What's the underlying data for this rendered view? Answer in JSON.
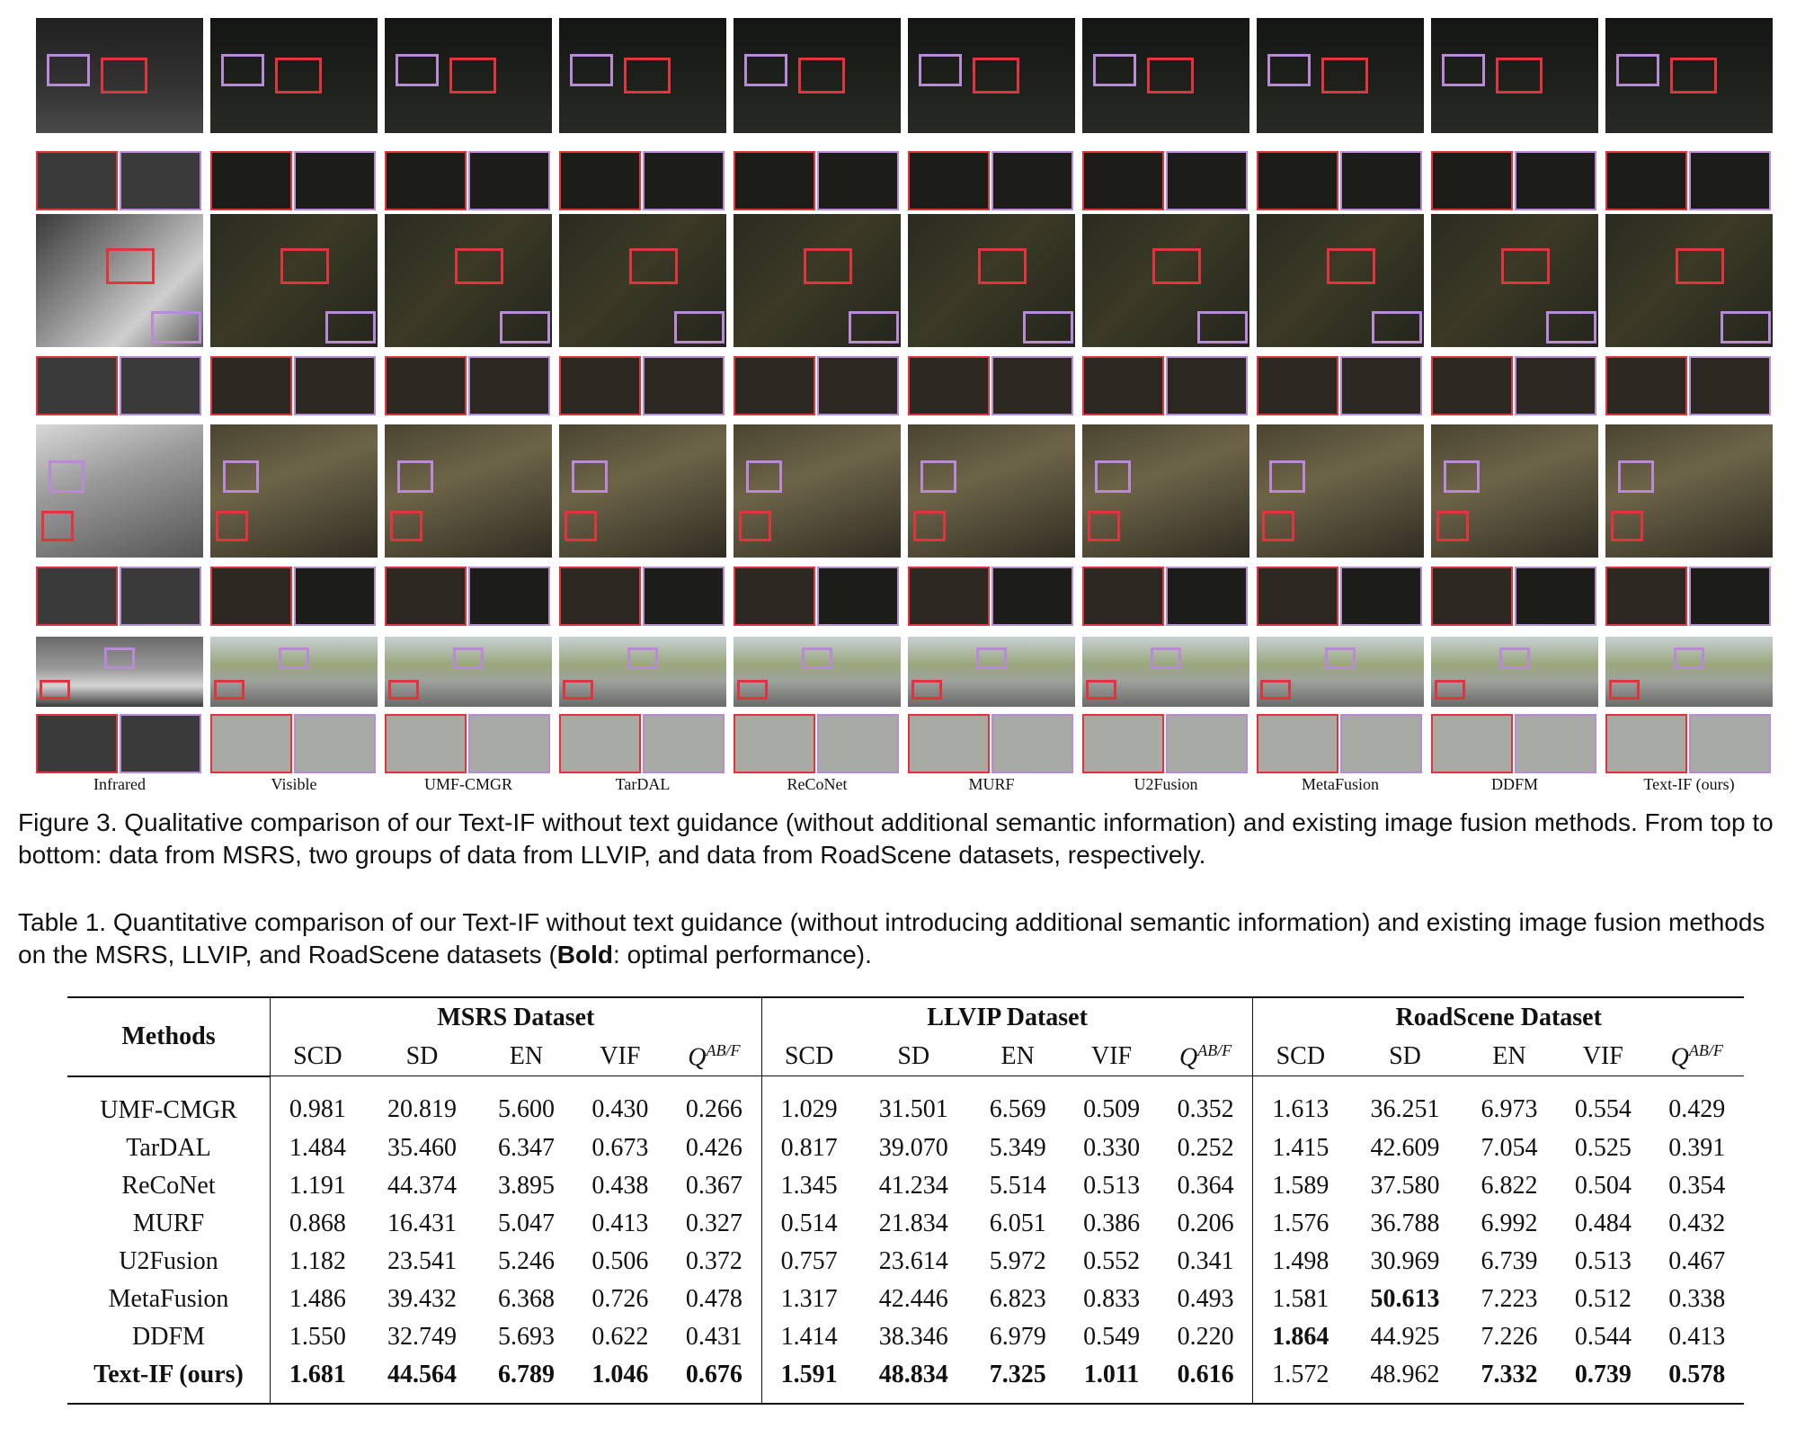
{
  "figure": {
    "methods": [
      "Infrared",
      "Visible",
      "UMF-CMGR",
      "TarDAL",
      "ReCoNet",
      "MURF",
      "U2Fusion",
      "MetaFusion",
      "DDFM",
      "Text-IF (ours)"
    ]
  },
  "figure_caption": "Figure 3. Qualitative comparison of our Text-IF without text guidance (without additional semantic information) and existing image fusion methods. From top to bottom: data from MSRS, two groups of data from LLVIP, and data from RoadScene datasets, respectively.",
  "table_caption_prefix": "Table 1. Quantitative comparison of our Text-IF without text guidance (without introducing additional semantic information) and existing image fusion methods on the MSRS, LLVIP, and RoadScene datasets (",
  "table_caption_bold": "Bold",
  "table_caption_suffix": ": optimal performance).",
  "table": {
    "methods_header": "Methods",
    "datasets": [
      "MSRS Dataset",
      "LLVIP Dataset",
      "RoadScene Dataset"
    ],
    "metrics": [
      "SCD",
      "SD",
      "EN",
      "VIF"
    ],
    "q_metric": {
      "base": "Q",
      "sup": "AB/F"
    },
    "rows": [
      {
        "method": "UMF-CMGR",
        "values": [
          "0.981",
          "20.819",
          "5.600",
          "0.430",
          "0.266",
          "1.029",
          "31.501",
          "6.569",
          "0.509",
          "0.352",
          "1.613",
          "36.251",
          "6.973",
          "0.554",
          "0.429"
        ]
      },
      {
        "method": "TarDAL",
        "values": [
          "1.484",
          "35.460",
          "6.347",
          "0.673",
          "0.426",
          "0.817",
          "39.070",
          "5.349",
          "0.330",
          "0.252",
          "1.415",
          "42.609",
          "7.054",
          "0.525",
          "0.391"
        ]
      },
      {
        "method": "ReCoNet",
        "values": [
          "1.191",
          "44.374",
          "3.895",
          "0.438",
          "0.367",
          "1.345",
          "41.234",
          "5.514",
          "0.513",
          "0.364",
          "1.589",
          "37.580",
          "6.822",
          "0.504",
          "0.354"
        ]
      },
      {
        "method": "MURF",
        "values": [
          "0.868",
          "16.431",
          "5.047",
          "0.413",
          "0.327",
          "0.514",
          "21.834",
          "6.051",
          "0.386",
          "0.206",
          "1.576",
          "36.788",
          "6.992",
          "0.484",
          "0.432"
        ]
      },
      {
        "method": "U2Fusion",
        "values": [
          "1.182",
          "23.541",
          "5.246",
          "0.506",
          "0.372",
          "0.757",
          "23.614",
          "5.972",
          "0.552",
          "0.341",
          "1.498",
          "30.969",
          "6.739",
          "0.513",
          "0.467"
        ]
      },
      {
        "method": "MetaFusion",
        "values": [
          "1.486",
          "39.432",
          "6.368",
          "0.726",
          "0.478",
          "1.317",
          "42.446",
          "6.823",
          "0.833",
          "0.493",
          "1.581",
          "50.613",
          "7.223",
          "0.512",
          "0.338"
        ]
      },
      {
        "method": "DDFM",
        "values": [
          "1.550",
          "32.749",
          "5.693",
          "0.622",
          "0.431",
          "1.414",
          "38.346",
          "6.979",
          "0.549",
          "0.220",
          "1.864",
          "44.925",
          "7.226",
          "0.544",
          "0.413"
        ]
      },
      {
        "method": "Text-IF (ours)",
        "values": [
          "1.681",
          "44.564",
          "6.789",
          "1.046",
          "0.676",
          "1.591",
          "48.834",
          "7.325",
          "1.011",
          "0.616",
          "1.572",
          "48.962",
          "7.332",
          "0.739",
          "0.578"
        ]
      }
    ],
    "bold_cells": [
      [
        5,
        11
      ],
      [
        6,
        10
      ],
      [
        7,
        0
      ],
      [
        7,
        1
      ],
      [
        7,
        2
      ],
      [
        7,
        3
      ],
      [
        7,
        4
      ],
      [
        7,
        5
      ],
      [
        7,
        6
      ],
      [
        7,
        7
      ],
      [
        7,
        8
      ],
      [
        7,
        9
      ],
      [
        7,
        12
      ],
      [
        7,
        13
      ],
      [
        7,
        14
      ]
    ]
  }
}
